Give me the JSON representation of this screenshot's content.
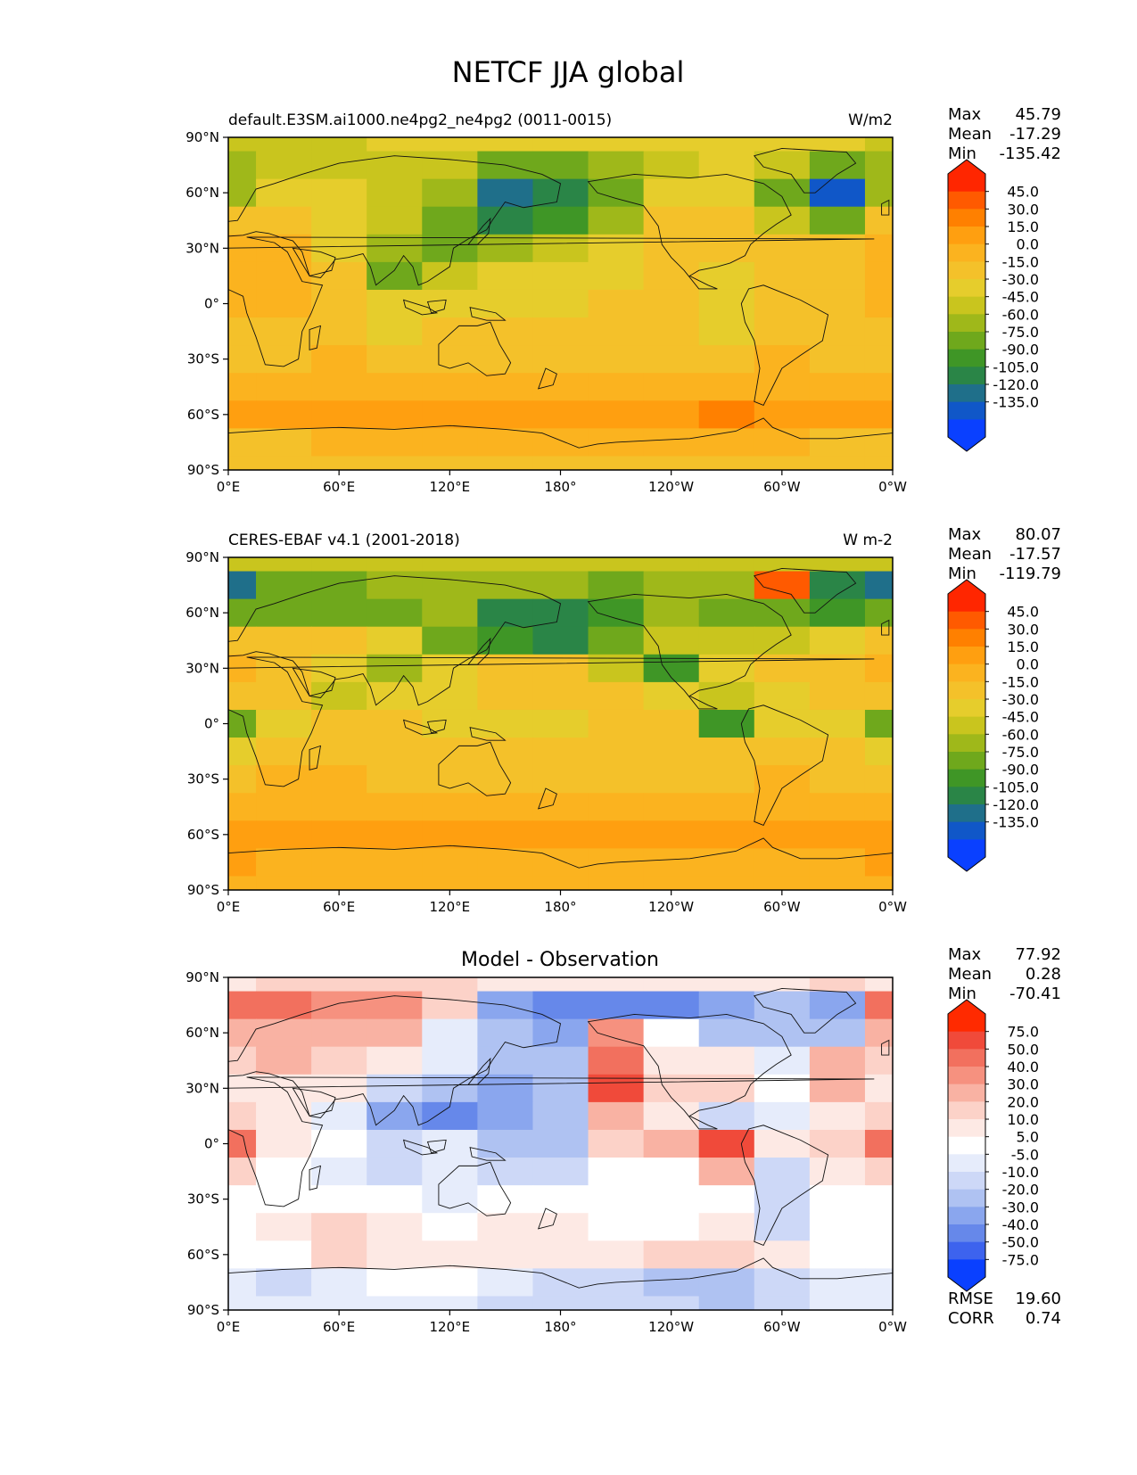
{
  "figure": {
    "title": "NETCF JJA global"
  },
  "axes": {
    "lat_ticks": [
      "90°N",
      "60°N",
      "30°N",
      "0°",
      "30°S",
      "60°S",
      "90°S"
    ],
    "lon_ticks": [
      "0°E",
      "60°E",
      "120°E",
      "180°",
      "120°W",
      "60°W",
      "0°W"
    ]
  },
  "panels": [
    {
      "id": "model",
      "left_title": "default.E3SM.ai1000.ne4pg2_ne4pg2 (0011-0015)",
      "center_title": "",
      "units": "W/m2",
      "stats": [
        {
          "label": "Max",
          "value": "45.79"
        },
        {
          "label": "Mean",
          "value": "-17.29"
        },
        {
          "label": "Min",
          "value": "-135.42"
        }
      ],
      "colorbar": {
        "labels": [
          "45.0",
          "30.0",
          "15.0",
          "0.0",
          "-15.0",
          "-30.0",
          "-45.0",
          "-60.0",
          "-75.0",
          "-90.0",
          "-105.0",
          "-120.0",
          "-135.0"
        ],
        "colors": [
          "#ff2600",
          "#ff5a00",
          "#ff8000",
          "#ff9f10",
          "#fbb31f",
          "#f4c12a",
          "#e6cd2c",
          "#c9c51e",
          "#9fb81a",
          "#6fa81c",
          "#3f9626",
          "#2a8547",
          "#1f6f8a",
          "#1057c8",
          "#0a40ff"
        ],
        "top_arrow_color": "#ff2600",
        "bottom_arrow_color": "#0a40ff"
      },
      "footer_stats": []
    },
    {
      "id": "observation",
      "left_title": "CERES-EBAF v4.1 (2001-2018)",
      "center_title": "",
      "units": "W m-2",
      "stats": [
        {
          "label": "Max",
          "value": "80.07"
        },
        {
          "label": "Mean",
          "value": "-17.57"
        },
        {
          "label": "Min",
          "value": "-119.79"
        }
      ],
      "colorbar": {
        "labels": [
          "45.0",
          "30.0",
          "15.0",
          "0.0",
          "-15.0",
          "-30.0",
          "-45.0",
          "-60.0",
          "-75.0",
          "-90.0",
          "-105.0",
          "-120.0",
          "-135.0"
        ],
        "colors": [
          "#ff2600",
          "#ff5a00",
          "#ff8000",
          "#ff9f10",
          "#fbb31f",
          "#f4c12a",
          "#e6cd2c",
          "#c9c51e",
          "#9fb81a",
          "#6fa81c",
          "#3f9626",
          "#2a8547",
          "#1f6f8a",
          "#1057c8",
          "#0a40ff"
        ],
        "top_arrow_color": "#ff2600",
        "bottom_arrow_color": "#0a40ff"
      },
      "footer_stats": []
    },
    {
      "id": "difference",
      "left_title": "",
      "center_title": "Model - Observation",
      "units": "",
      "stats": [
        {
          "label": "Max",
          "value": "77.92"
        },
        {
          "label": "Mean",
          "value": "0.28"
        },
        {
          "label": "Min",
          "value": "-70.41"
        }
      ],
      "colorbar": {
        "labels": [
          "75.0",
          "50.0",
          "40.0",
          "30.0",
          "20.0",
          "10.0",
          "5.0",
          "-5.0",
          "-10.0",
          "-20.0",
          "-30.0",
          "-40.0",
          "-50.0",
          "-75.0"
        ],
        "colors": [
          "#ff2a00",
          "#f04a3a",
          "#f2705e",
          "#f6917f",
          "#f9b2a3",
          "#fcd2c8",
          "#fde9e4",
          "#ffffff",
          "#e6ecfb",
          "#cdd8f7",
          "#afc2f2",
          "#8aa6ee",
          "#6688ea",
          "#3d63ee",
          "#0a40ff"
        ],
        "top_arrow_color": "#ff2a00",
        "bottom_arrow_color": "#0a40ff"
      },
      "footer_stats": [
        {
          "label": "RMSE",
          "value": "19.60"
        },
        {
          "label": "CORR",
          "value": "0.74"
        }
      ]
    }
  ],
  "chart_data": [
    {
      "type": "heatmap",
      "title": "default.E3SM.ai1000.ne4pg2_ne4pg2 (0011-0015)",
      "units": "W/m2",
      "xlabel": "",
      "ylabel": "",
      "x_ticks": [
        "0°E",
        "60°E",
        "120°E",
        "180°",
        "120°W",
        "60°W",
        "0°W"
      ],
      "y_ticks": [
        "90°N",
        "60°N",
        "30°N",
        "0°",
        "30°S",
        "60°S",
        "90°S"
      ],
      "xlim": [
        0,
        360
      ],
      "ylim": [
        -90,
        90
      ],
      "levels": [
        -135,
        -120,
        -105,
        -90,
        -75,
        -60,
        -45,
        -30,
        -15,
        0,
        15,
        30,
        45
      ],
      "stats": {
        "max": 45.79,
        "mean": -17.29,
        "min": -135.42
      },
      "lon": [
        0,
        30,
        60,
        90,
        120,
        150,
        180,
        210,
        240,
        270,
        300,
        330,
        360
      ],
      "lat": [
        90,
        75,
        60,
        45,
        30,
        15,
        0,
        -15,
        -30,
        -45,
        -60,
        -75,
        -90
      ],
      "values": [
        [
          -40,
          -40,
          -35,
          -30,
          -25,
          -30,
          -25,
          -25,
          -20,
          -20,
          -20,
          -25,
          -40
        ],
        [
          -60,
          -45,
          -40,
          -40,
          -45,
          -70,
          -70,
          -60,
          -35,
          -25,
          -45,
          -70,
          -60
        ],
        [
          -50,
          -30,
          -30,
          -35,
          -60,
          -115,
          -105,
          -75,
          -30,
          -30,
          -70,
          -125,
          -50
        ],
        [
          -10,
          -5,
          -20,
          -35,
          -70,
          -100,
          -90,
          -50,
          -10,
          -15,
          -40,
          -65,
          -10
        ],
        [
          10,
          8,
          -25,
          -55,
          -70,
          -55,
          -45,
          -25,
          -5,
          -15,
          -5,
          -5,
          10
        ],
        [
          5,
          0,
          -15,
          -65,
          -40,
          -30,
          -25,
          -20,
          -10,
          -25,
          -15,
          -5,
          5
        ],
        [
          5,
          0,
          -10,
          -30,
          -20,
          -20,
          -20,
          -15,
          -10,
          -25,
          -15,
          -5,
          5
        ],
        [
          -15,
          -15,
          -5,
          -20,
          -15,
          -5,
          -5,
          -10,
          -5,
          -25,
          -5,
          -10,
          -15
        ],
        [
          -10,
          -5,
          0,
          -5,
          -10,
          -10,
          -5,
          -10,
          -5,
          -10,
          0,
          -5,
          -10
        ],
        [
          5,
          10,
          5,
          5,
          5,
          5,
          10,
          5,
          5,
          5,
          10,
          5,
          5
        ],
        [
          20,
          20,
          25,
          20,
          20,
          20,
          20,
          20,
          25,
          30,
          25,
          20,
          20
        ],
        [
          -5,
          -5,
          0,
          0,
          0,
          5,
          0,
          0,
          0,
          0,
          0,
          -5,
          -5
        ],
        [
          -5,
          -5,
          -5,
          -5,
          -5,
          -5,
          -5,
          -5,
          -5,
          -5,
          -5,
          -5,
          -5
        ]
      ]
    },
    {
      "type": "heatmap",
      "title": "CERES-EBAF v4.1 (2001-2018)",
      "units": "W m-2",
      "xlabel": "",
      "ylabel": "",
      "x_ticks": [
        "0°E",
        "60°E",
        "120°E",
        "180°",
        "120°W",
        "60°W",
        "0°W"
      ],
      "y_ticks": [
        "90°N",
        "60°N",
        "30°N",
        "0°",
        "30°S",
        "60°S",
        "90°S"
      ],
      "xlim": [
        0,
        360
      ],
      "ylim": [
        -90,
        90
      ],
      "levels": [
        -135,
        -120,
        -105,
        -90,
        -75,
        -60,
        -45,
        -30,
        -15,
        0,
        15,
        30,
        45
      ],
      "stats": {
        "max": 80.07,
        "mean": -17.57,
        "min": -119.79
      },
      "lon": [
        0,
        30,
        60,
        90,
        120,
        150,
        180,
        210,
        240,
        270,
        300,
        330,
        360
      ],
      "lat": [
        90,
        75,
        60,
        45,
        30,
        15,
        0,
        -15,
        -30,
        -45,
        -60,
        -75,
        -90
      ],
      "values": [
        [
          -45,
          -45,
          -45,
          -45,
          -45,
          -45,
          -45,
          -45,
          -45,
          -40,
          -40,
          -45,
          -45
        ],
        [
          -110,
          -70,
          -70,
          -60,
          -55,
          -55,
          -60,
          -70,
          -55,
          -55,
          60,
          -95,
          -110
        ],
        [
          -65,
          -65,
          -75,
          -75,
          -55,
          -105,
          -105,
          -85,
          -50,
          -75,
          -70,
          -90,
          -65
        ],
        [
          -5,
          -15,
          -10,
          -30,
          -75,
          -90,
          -100,
          -75,
          -35,
          -40,
          -45,
          -30,
          -5
        ],
        [
          0,
          -10,
          -20,
          -55,
          -25,
          -10,
          -15,
          -35,
          -80,
          -30,
          -10,
          -5,
          0
        ],
        [
          -5,
          -15,
          -35,
          -30,
          -25,
          -15,
          -10,
          -15,
          -25,
          -35,
          -20,
          -5,
          -5
        ],
        [
          -70,
          -20,
          -10,
          -15,
          -30,
          -25,
          -20,
          -15,
          -10,
          -90,
          -20,
          -20,
          -70
        ],
        [
          -20,
          -5,
          -5,
          -5,
          -15,
          -10,
          -10,
          -5,
          -5,
          -10,
          -10,
          -10,
          -20
        ],
        [
          -5,
          0,
          0,
          -5,
          -10,
          -5,
          -5,
          -5,
          -5,
          -5,
          0,
          -5,
          -5
        ],
        [
          5,
          5,
          5,
          5,
          5,
          5,
          5,
          5,
          5,
          5,
          5,
          5,
          5
        ],
        [
          15,
          15,
          15,
          15,
          15,
          15,
          15,
          15,
          15,
          15,
          15,
          15,
          15
        ],
        [
          15,
          10,
          10,
          10,
          10,
          10,
          10,
          10,
          10,
          10,
          10,
          10,
          15
        ],
        [
          0,
          0,
          0,
          0,
          0,
          0,
          0,
          0,
          0,
          0,
          0,
          0,
          0
        ]
      ]
    },
    {
      "type": "heatmap",
      "title": "Model - Observation",
      "units": "",
      "xlabel": "",
      "ylabel": "",
      "x_ticks": [
        "0°E",
        "60°E",
        "120°E",
        "180°",
        "120°W",
        "60°W",
        "0°W"
      ],
      "y_ticks": [
        "90°N",
        "60°N",
        "30°N",
        "0°",
        "30°S",
        "60°S",
        "90°S"
      ],
      "xlim": [
        0,
        360
      ],
      "ylim": [
        -90,
        90
      ],
      "levels": [
        -75,
        -50,
        -40,
        -30,
        -20,
        -10,
        -5,
        5,
        10,
        20,
        30,
        40,
        50,
        75
      ],
      "stats": {
        "max": 77.92,
        "mean": 0.28,
        "min": -70.41,
        "rmse": 19.6,
        "corr": 0.74
      },
      "lon": [
        0,
        30,
        60,
        90,
        120,
        150,
        180,
        210,
        240,
        270,
        300,
        330,
        360
      ],
      "lat": [
        90,
        75,
        60,
        45,
        30,
        15,
        0,
        -15,
        -30,
        -45,
        -60,
        -75,
        -90
      ],
      "values": [
        [
          5,
          10,
          10,
          10,
          10,
          5,
          5,
          5,
          5,
          5,
          5,
          10,
          5
        ],
        [
          40,
          40,
          35,
          30,
          10,
          -40,
          -45,
          -50,
          -45,
          -40,
          -25,
          -40,
          40
        ],
        [
          20,
          25,
          20,
          20,
          -10,
          -25,
          -35,
          30,
          0,
          -30,
          -25,
          -25,
          20
        ],
        [
          15,
          20,
          15,
          5,
          -10,
          -25,
          -30,
          40,
          5,
          5,
          -10,
          20,
          15
        ],
        [
          5,
          5,
          5,
          -15,
          -30,
          -35,
          -30,
          60,
          10,
          10,
          0,
          20,
          5
        ],
        [
          10,
          5,
          -10,
          -40,
          -45,
          -40,
          -30,
          20,
          5,
          -15,
          -10,
          5,
          10
        ],
        [
          40,
          5,
          -5,
          -15,
          -10,
          -25,
          -30,
          15,
          20,
          55,
          5,
          15,
          40
        ],
        [
          10,
          -5,
          -10,
          -15,
          -10,
          -15,
          -15,
          -5,
          -5,
          20,
          -15,
          5,
          10
        ],
        [
          0,
          0,
          0,
          -5,
          -10,
          -5,
          0,
          0,
          0,
          -5,
          -20,
          0,
          0
        ],
        [
          0,
          5,
          10,
          5,
          0,
          5,
          5,
          0,
          0,
          5,
          -20,
          0,
          0
        ],
        [
          0,
          0,
          10,
          5,
          5,
          5,
          5,
          5,
          10,
          15,
          5,
          0,
          0
        ],
        [
          -10,
          -15,
          -10,
          -5,
          -5,
          -10,
          -20,
          -20,
          -25,
          -30,
          -20,
          -10,
          -10
        ],
        [
          -10,
          -10,
          -10,
          -10,
          -10,
          -15,
          -20,
          -20,
          -20,
          -25,
          -15,
          -10,
          -10
        ]
      ]
    }
  ]
}
